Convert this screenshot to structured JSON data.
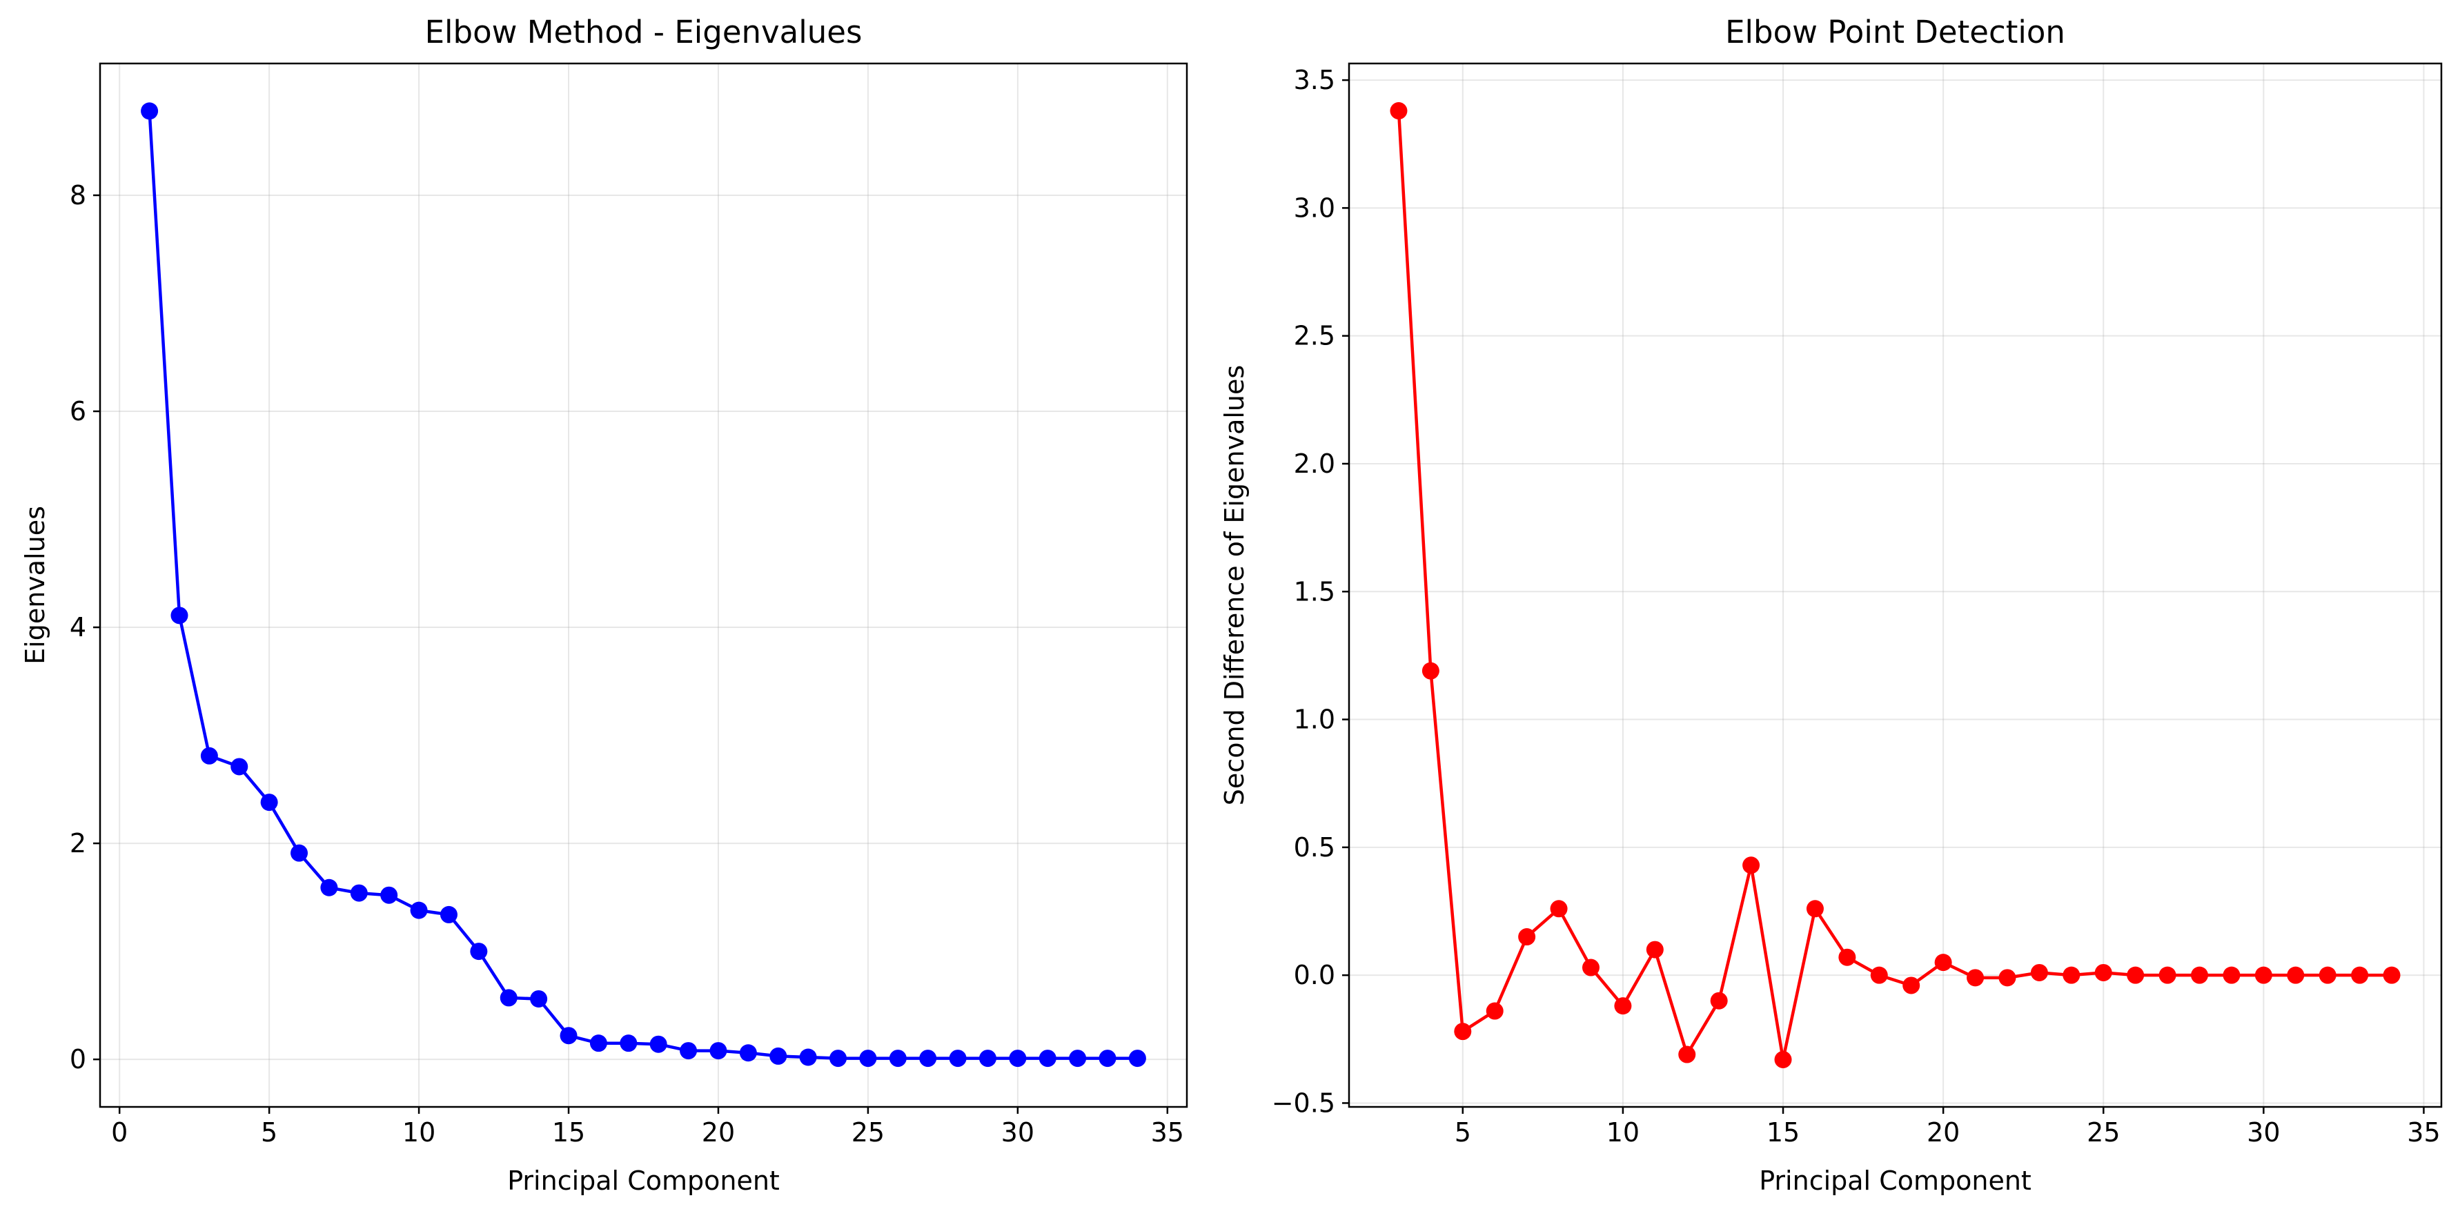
{
  "chart_data": [
    {
      "type": "line",
      "title": "Elbow Method - Eigenvalues",
      "xlabel": "Principal Component",
      "ylabel": "Eigenvalues",
      "xlim": [
        -0.65,
        35.65
      ],
      "ylim": [
        -0.44,
        9.22
      ],
      "xticks": [
        0,
        5,
        10,
        15,
        20,
        25,
        30,
        35
      ],
      "yticks": [
        0,
        2,
        4,
        6,
        8
      ],
      "grid": true,
      "color": "#0000ff",
      "marker": "circle",
      "series": [
        {
          "x": [
            1,
            2,
            3,
            4,
            5,
            6,
            7,
            8,
            9,
            10,
            11,
            12,
            13,
            14,
            15,
            16,
            17,
            18,
            19,
            20,
            21,
            22,
            23,
            24,
            25,
            26,
            27,
            28,
            29,
            30,
            31,
            32,
            33,
            34
          ],
          "values": [
            8.78,
            4.11,
            2.81,
            2.71,
            2.38,
            1.91,
            1.59,
            1.54,
            1.52,
            1.38,
            1.34,
            1.0,
            0.57,
            0.56,
            0.22,
            0.15,
            0.15,
            0.14,
            0.08,
            0.08,
            0.06,
            0.03,
            0.02,
            0.01,
            0.01,
            0.01,
            0.01,
            0.01,
            0.01,
            0.01,
            0.01,
            0.01,
            0.01,
            0.01
          ]
        }
      ]
    },
    {
      "type": "line",
      "title": "Elbow Point Detection",
      "xlabel": "Principal Component",
      "ylabel": "Second Difference of Eigenvalues",
      "xlim": [
        1.45,
        35.55
      ],
      "ylim": [
        -0.515,
        3.565
      ],
      "xticks": [
        5,
        10,
        15,
        20,
        25,
        30,
        35
      ],
      "yticks": [
        -0.5,
        0.0,
        0.5,
        1.0,
        1.5,
        2.0,
        2.5,
        3.0,
        3.5
      ],
      "grid": true,
      "color": "#ff0000",
      "marker": "circle",
      "series": [
        {
          "x": [
            3,
            4,
            5,
            6,
            7,
            8,
            9,
            10,
            11,
            12,
            13,
            14,
            15,
            16,
            17,
            18,
            19,
            20,
            21,
            22,
            23,
            24,
            25,
            26,
            27,
            28,
            29,
            30,
            31,
            32,
            33,
            34
          ],
          "values": [
            3.38,
            1.19,
            -0.22,
            -0.14,
            0.15,
            0.26,
            0.03,
            -0.12,
            0.1,
            -0.31,
            -0.1,
            0.43,
            -0.33,
            0.26,
            0.07,
            0.0,
            -0.04,
            0.05,
            -0.01,
            -0.01,
            0.01,
            0.0,
            0.01,
            0.0,
            0.0,
            0.0,
            0.0,
            0.0,
            0.0,
            0.0,
            0.0,
            0.0
          ]
        }
      ]
    }
  ]
}
